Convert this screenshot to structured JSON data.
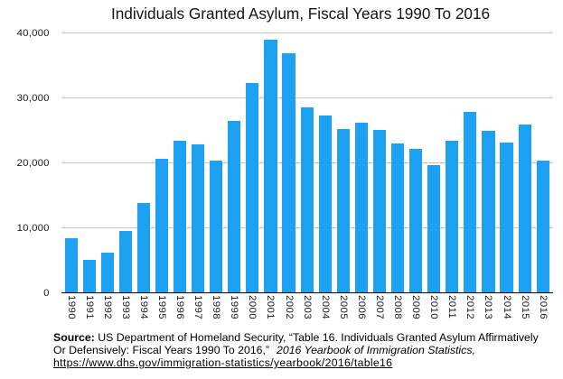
{
  "chart_data": {
    "type": "bar",
    "title": "Individuals Granted Asylum, Fiscal Years 1990 To 2016",
    "categories": [
      "1990",
      "1991",
      "1992",
      "1993",
      "1994",
      "1995",
      "1996",
      "1997",
      "1998",
      "1999",
      "2000",
      "2001",
      "2002",
      "2003",
      "2004",
      "2005",
      "2006",
      "2007",
      "2008",
      "2009",
      "2010",
      "2011",
      "2012",
      "2013",
      "2014",
      "2015",
      "2016"
    ],
    "values": [
      8350,
      5000,
      6200,
      9450,
      13750,
      20600,
      23450,
      22850,
      20350,
      26400,
      32300,
      39000,
      36850,
      28600,
      27300,
      25150,
      26200,
      25100,
      22950,
      22150,
      19600,
      23400,
      27900,
      24900,
      23150,
      25900,
      20400
    ],
    "xlabel": "",
    "ylabel": "",
    "ylim": [
      0,
      40000
    ],
    "ytick_interval": 10000,
    "ytick_labels": [
      "0",
      "10,000",
      "20,000",
      "30,000",
      "40,000"
    ],
    "grid": "horizontal",
    "legend": "none",
    "bar_color": "#1da1f2",
    "gridline_color": "#c8c8c8",
    "axis_line_color": "#000000"
  },
  "source": {
    "label_bold": "Source:",
    "line1_rest": " US Department of Homeland Security, “Table 16. Individuals Granted Asylum Affirmatively",
    "line2_normal": "Or Defensively: Fiscal Years 1990 To 2016,”",
    "line2_italic": "2016 Yearbook of Immigration Statistics,",
    "line3_link": "https://www.dhs.gov/immigration-statistics/yearbook/2016/table16"
  }
}
